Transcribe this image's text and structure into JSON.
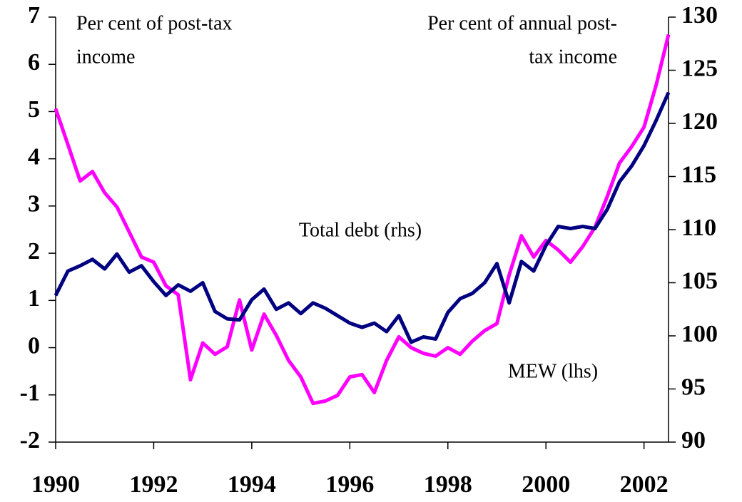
{
  "chart_data": {
    "type": "line",
    "y_label": [
      "Per cent of post-tax",
      "income"
    ],
    "y2_label": [
      "Per cent of annual post-",
      "tax income"
    ],
    "x": [
      1990,
      1990.25,
      1990.5,
      1990.75,
      1991,
      1991.25,
      1991.5,
      1991.75,
      1992,
      1992.25,
      1992.5,
      1992.75,
      1993,
      1993.25,
      1993.5,
      1993.75,
      1994,
      1994.25,
      1994.5,
      1994.75,
      1995,
      1995.25,
      1995.5,
      1995.75,
      1996,
      1996.25,
      1996.5,
      1996.75,
      1997,
      1997.25,
      1997.5,
      1997.75,
      1998,
      1998.25,
      1998.5,
      1998.75,
      1999,
      1999.25,
      1999.5,
      1999.75,
      2000,
      2000.25,
      2000.5,
      2000.75,
      2001,
      2001.25,
      2001.5,
      2001.75,
      2002,
      2002.25,
      2002.5
    ],
    "series": [
      {
        "name": "MEW (lhs)",
        "color": "#ff00ff",
        "axis": "y",
        "values": [
          5.06,
          4.3,
          3.53,
          3.73,
          3.28,
          2.98,
          2.45,
          1.92,
          1.81,
          1.31,
          1.12,
          -0.68,
          0.1,
          -0.14,
          0.02,
          1.01,
          -0.05,
          0.71,
          0.26,
          -0.27,
          -0.62,
          -1.18,
          -1.13,
          -1.01,
          -0.62,
          -0.57,
          -0.95,
          -0.27,
          0.23,
          0,
          -0.12,
          -0.18,
          0,
          -0.14,
          0.14,
          0.36,
          0.51,
          1.54,
          2.37,
          1.92,
          2.27,
          2.07,
          1.81,
          2.14,
          2.55,
          3.2,
          3.91,
          4.26,
          4.67,
          5.57,
          6.63
        ]
      },
      {
        "name": "Total debt (rhs)",
        "color": "#000080",
        "axis": "y2",
        "values": [
          103.8,
          106.1,
          106.6,
          107.2,
          106.3,
          107.7,
          106.0,
          106.6,
          105.1,
          103.8,
          104.8,
          104.2,
          105.0,
          102.3,
          101.6,
          101.5,
          103.4,
          104.4,
          102.5,
          103.1,
          102.1,
          103.1,
          102.6,
          101.9,
          101.2,
          100.8,
          101.2,
          100.4,
          101.9,
          99.4,
          99.9,
          99.7,
          102.2,
          103.5,
          104.0,
          105.0,
          106.8,
          103.1,
          107.0,
          106.1,
          108.5,
          110.3,
          110.1,
          110.3,
          110.1,
          111.9,
          114.5,
          116.0,
          117.9,
          120.3,
          122.9
        ]
      }
    ],
    "xlim": [
      1990,
      2002.5
    ],
    "xticks": [
      1990,
      1992,
      1994,
      1996,
      1998,
      2000,
      2002
    ],
    "ylim": [
      -2,
      7
    ],
    "yticks": [
      -2,
      -1,
      0,
      1,
      2,
      3,
      4,
      5,
      6,
      7
    ],
    "y2lim": [
      90,
      130
    ],
    "y2ticks": [
      90,
      95,
      100,
      105,
      110,
      115,
      120,
      125,
      130
    ],
    "grid": false
  }
}
